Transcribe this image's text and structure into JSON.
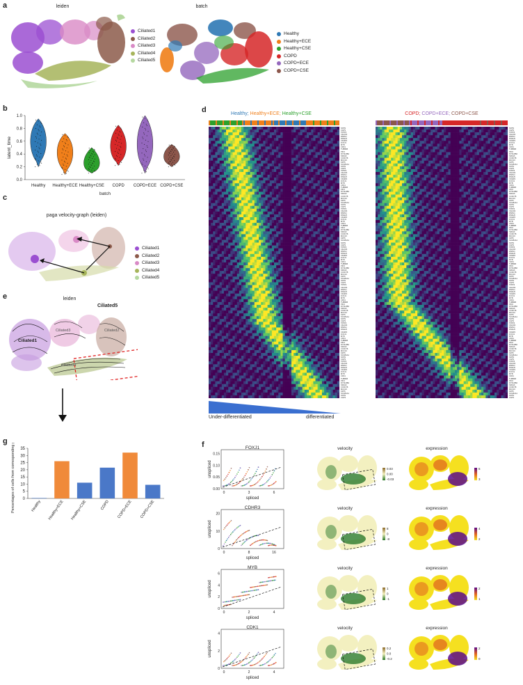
{
  "panels": {
    "a": "a",
    "b": "b",
    "c": "c",
    "d": "d",
    "e": "e",
    "f": "f",
    "g": "g"
  },
  "panel_a": {
    "leiden_title": "leiden",
    "batch_title": "batch",
    "leiden_legend": [
      {
        "label": "Ciliated1",
        "color": "#9b4fd1"
      },
      {
        "label": "Ciliated2",
        "color": "#8c5a4a"
      },
      {
        "label": "Ciliated3",
        "color": "#d98ac6"
      },
      {
        "label": "Ciliated4",
        "color": "#a6b45a"
      },
      {
        "label": "Ciliated5",
        "color": "#b5d8a0"
      }
    ],
    "batch_legend": [
      {
        "label": "Healthy",
        "color": "#2f79b5"
      },
      {
        "label": "Healthy+ECE",
        "color": "#f07f1a"
      },
      {
        "label": "Healthy+CSE",
        "color": "#2ca02c"
      },
      {
        "label": "COPD",
        "color": "#d62728"
      },
      {
        "label": "COPD+ECE",
        "color": "#9467bd"
      },
      {
        "label": "COPD+CSE",
        "color": "#8c564b"
      }
    ]
  },
  "chart_data": [
    {
      "panel": "b",
      "type": "violin",
      "ylabel": "latent_time",
      "xlabel": "batch",
      "categories": [
        "Healthy",
        "Healthy+ECE",
        "Healthy+CSE",
        "COPD",
        "COPD+ECE",
        "COPD+CSE"
      ],
      "colors": [
        "#2f79b5",
        "#f07f1a",
        "#2ca02c",
        "#d62728",
        "#9467bd",
        "#8c564b"
      ],
      "ylim": [
        0.0,
        1.0
      ],
      "yticks": [
        "0.0",
        "0.2",
        "0.4",
        "0.6",
        "0.8",
        "1.0"
      ],
      "medians": [
        0.62,
        0.45,
        0.21,
        0.5,
        0.55,
        0.34
      ],
      "ranges": [
        [
          0.2,
          0.95
        ],
        [
          0.08,
          0.72
        ],
        [
          0.1,
          0.5
        ],
        [
          0.22,
          0.85
        ],
        [
          0.1,
          1.0
        ],
        [
          0.2,
          0.55
        ]
      ]
    },
    {
      "panel": "g",
      "type": "bar",
      "ylabel": "Percentages of cells from corresponding group",
      "categories": [
        "Healthy",
        "Healthy+ECE",
        "Healthy+CSE",
        "COPD",
        "COPD+ECE",
        "COPD+CSE"
      ],
      "values": [
        0.3,
        26,
        11,
        21.5,
        32,
        9.5
      ],
      "colors": [
        "#4a78c8",
        "#f08a3a",
        "#4a78c8",
        "#4a78c8",
        "#f08a3a",
        "#4a78c8"
      ],
      "ylim": [
        0,
        35
      ],
      "yticks": [
        "0",
        "5",
        "10",
        "15",
        "20",
        "25",
        "30",
        "35"
      ]
    }
  ],
  "panel_c": {
    "title": "paga velocity-graph (leiden)",
    "legend": [
      {
        "label": "Ciliated1",
        "color": "#9b4fd1"
      },
      {
        "label": "Ciliated2",
        "color": "#8c5a4a"
      },
      {
        "label": "Ciliated3",
        "color": "#d98ac6"
      },
      {
        "label": "Ciliated4",
        "color": "#a6b45a"
      },
      {
        "label": "Ciliated5",
        "color": "#b5d8a0"
      }
    ]
  },
  "panel_d": {
    "left_title": [
      {
        "text": "Healthy; ",
        "color": "#2f79b5"
      },
      {
        "text": "Healthy+ECE; ",
        "color": "#f07f1a"
      },
      {
        "text": "Healthy+CSE",
        "color": "#2ca02c"
      }
    ],
    "right_title": [
      {
        "text": "COPD; ",
        "color": "#d62728"
      },
      {
        "text": "COPD+ECE; ",
        "color": "#9467bd"
      },
      {
        "text": "COPD+CSE",
        "color": "#8c564b"
      }
    ],
    "under_label": "Under-differentiated",
    "diff_label": "differentiated",
    "gradient_color": "#3a6fd0"
  },
  "panel_e": {
    "title": "leiden",
    "label_c5": "Ciliated5",
    "label_c1": "Ciliated1",
    "label_c3": "Ciliated3",
    "label_c2": "Ciliated2",
    "label_c4": "Ciliated4"
  },
  "panel_f": {
    "rows": [
      {
        "gene": "FOXJ1",
        "scatter_y": [
          "0.00",
          "0.05",
          "0.10",
          "0.15"
        ],
        "scatter_x": [
          "0",
          "3",
          "6"
        ],
        "vel_ticks": [
          "0.03",
          "0.00",
          "-0.03"
        ],
        "exp_ticks": [
          "6",
          "3"
        ]
      },
      {
        "gene": "CDHR3",
        "scatter_y": [
          "0",
          "10",
          "20"
        ],
        "scatter_x": [
          "0",
          "8",
          "16"
        ],
        "vel_ticks": [
          "8",
          "0",
          "-8"
        ],
        "exp_ticks": [
          "4",
          "2"
        ]
      },
      {
        "gene": "MYB",
        "scatter_y": [
          "0",
          "2",
          "4",
          "6"
        ],
        "scatter_x": [
          "0",
          "2",
          "4"
        ],
        "vel_ticks": [
          "1",
          "0",
          "-1"
        ],
        "exp_ticks": [
          "2",
          "1"
        ]
      },
      {
        "gene": "CDK1",
        "scatter_y": [
          "0",
          "2",
          "4"
        ],
        "scatter_x": [
          "0",
          "2",
          "4"
        ],
        "vel_ticks": [
          "0.2",
          "0.0",
          "-0.2"
        ],
        "exp_ticks": [
          "2",
          "0"
        ]
      }
    ],
    "xlabel": "spliced",
    "ylabel": "unspliced",
    "velocity_title": "velocity",
    "expression_title": "expression"
  }
}
